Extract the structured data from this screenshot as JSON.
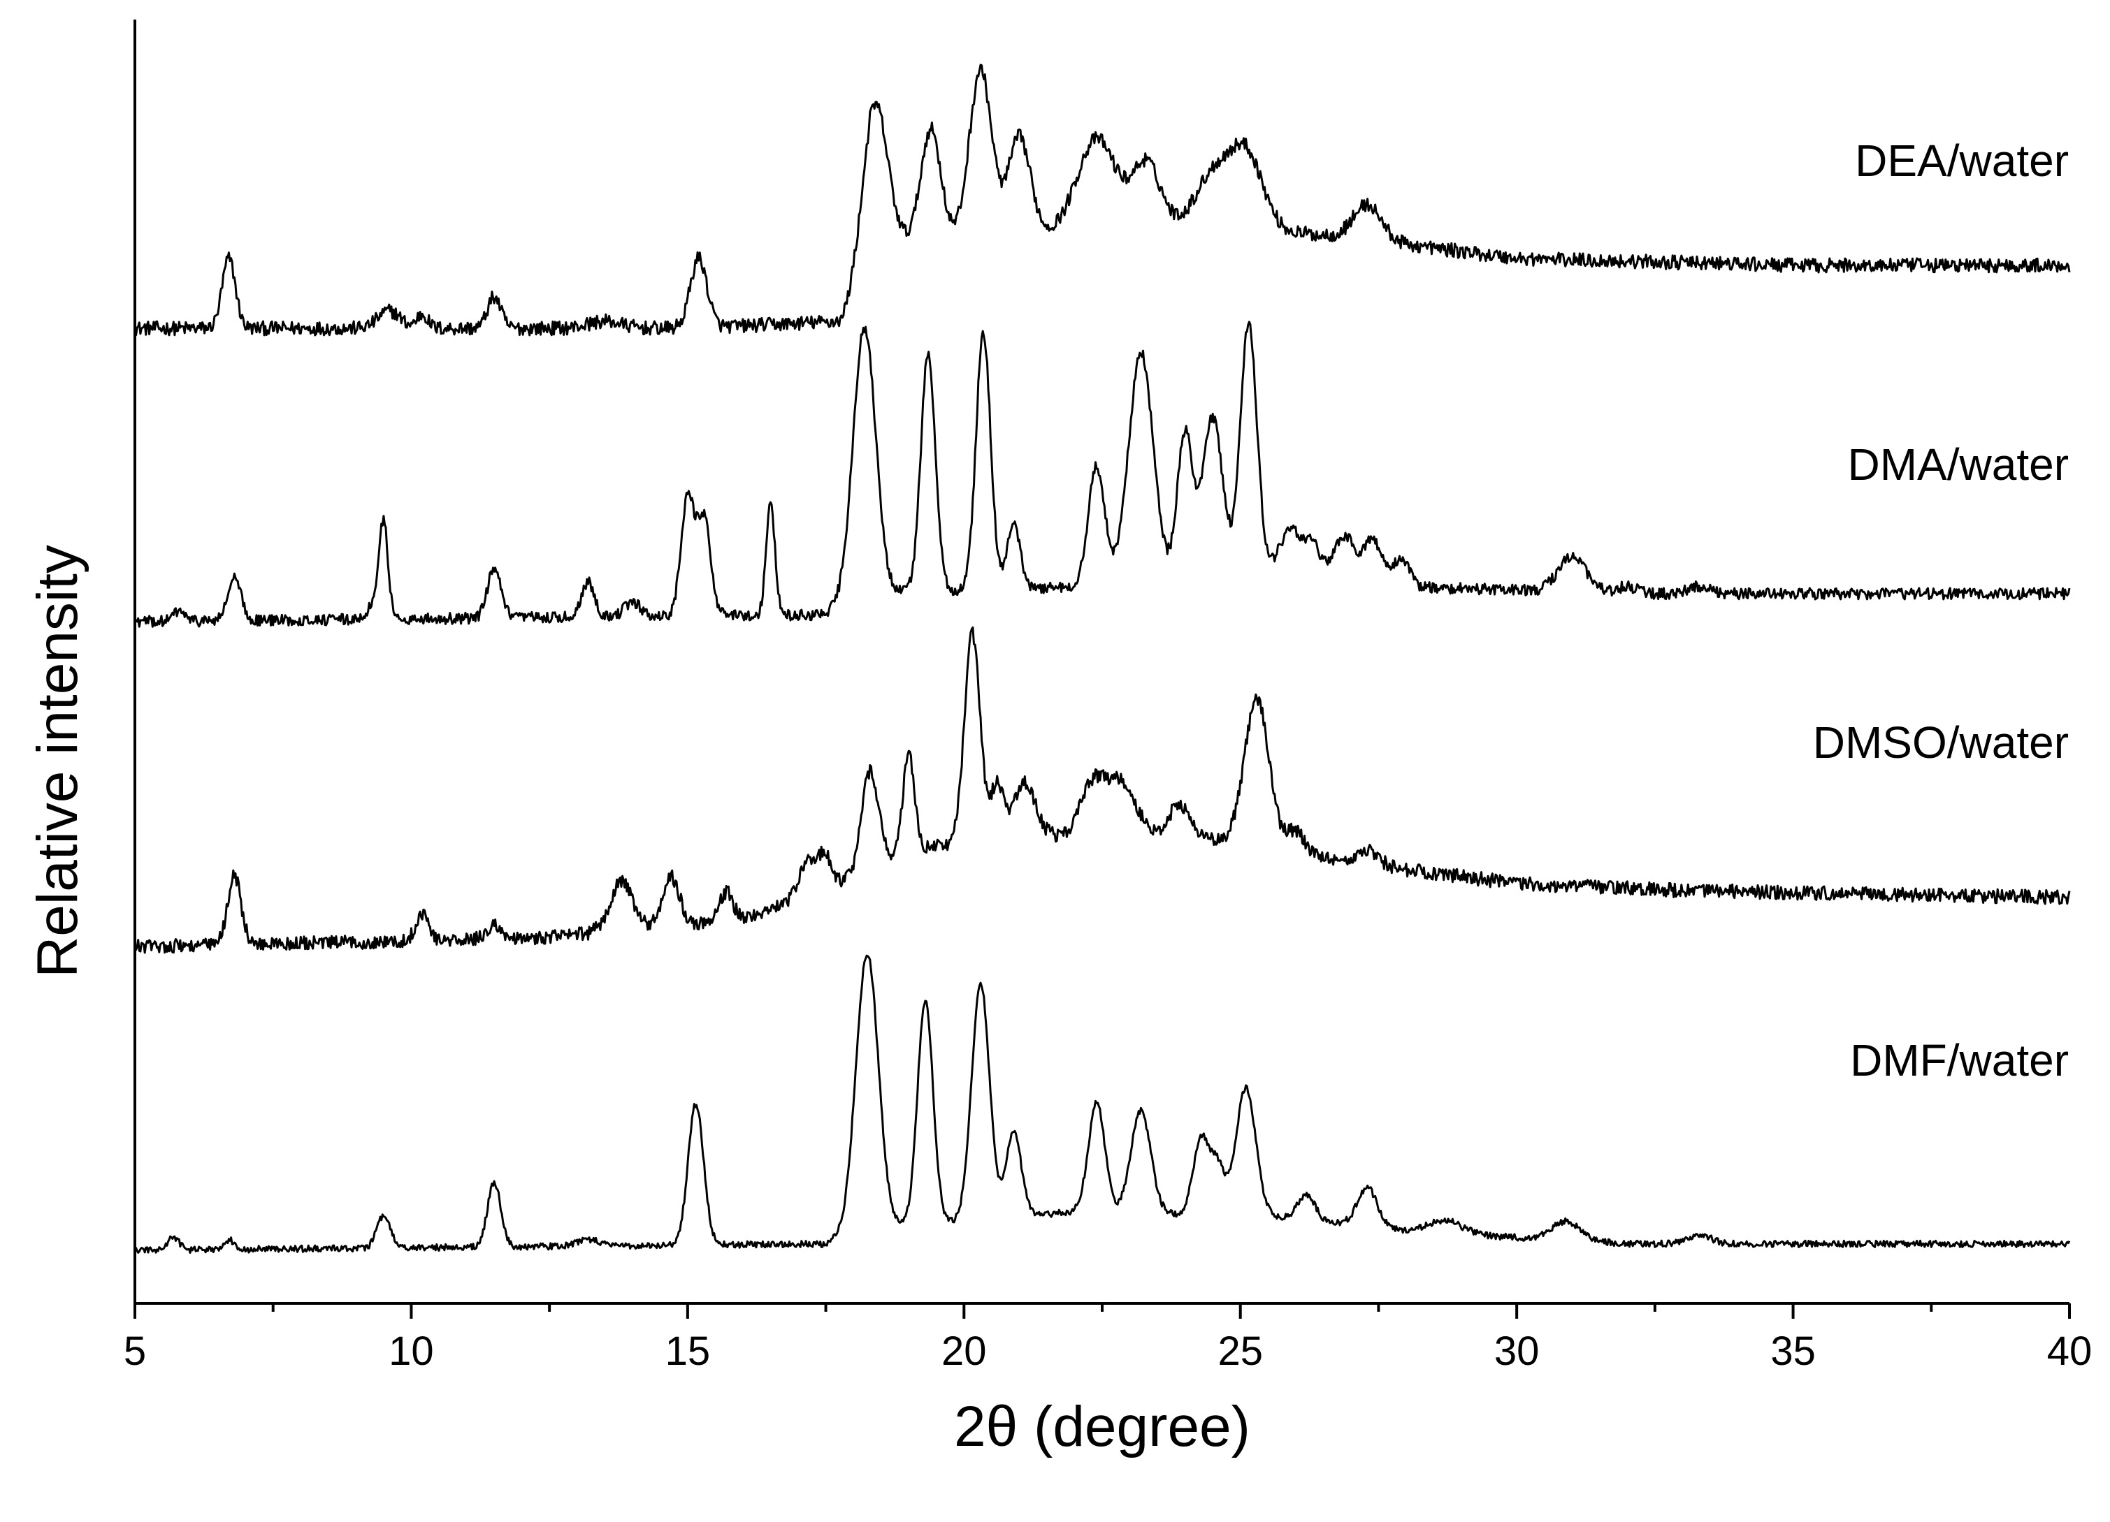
{
  "chart_data": {
    "type": "line",
    "xlabel": "2θ (degree)",
    "ylabel": "Relative intensity",
    "xlim": [
      5,
      40
    ],
    "x_ticks": [
      5,
      10,
      15,
      20,
      25,
      30,
      35,
      40
    ],
    "x_tick_labels": [
      "5",
      "10",
      "15",
      "20",
      "25",
      "30",
      "35",
      "40"
    ],
    "y_ticks_shown": false,
    "grid": false,
    "legend": "labels at right end of each trace",
    "series": [
      {
        "name": "DEA/water",
        "baseline": 0.0,
        "noise": 0.01,
        "background": [
          [
            5,
            0
          ],
          [
            15,
            0
          ],
          [
            17.8,
            0.01
          ],
          [
            18.3,
            0.12
          ],
          [
            24,
            0.15
          ],
          [
            27,
            0.13
          ],
          [
            30,
            0.1
          ],
          [
            35,
            0.09
          ],
          [
            40,
            0.09
          ]
        ],
        "peaks": [
          [
            6.7,
            0.1,
            0.12
          ],
          [
            9.6,
            0.025,
            0.2
          ],
          [
            10.2,
            0.02,
            0.1
          ],
          [
            11.5,
            0.045,
            0.12
          ],
          [
            13.5,
            0.01,
            0.3
          ],
          [
            15.2,
            0.1,
            0.15
          ],
          [
            18.4,
            0.2,
            0.22
          ],
          [
            19.4,
            0.16,
            0.18
          ],
          [
            20.3,
            0.24,
            0.2
          ],
          [
            21.0,
            0.14,
            0.2
          ],
          [
            22.4,
            0.13,
            0.35
          ],
          [
            23.3,
            0.09,
            0.25
          ],
          [
            24.5,
            0.07,
            0.3
          ],
          [
            25.1,
            0.11,
            0.3
          ],
          [
            27.3,
            0.05,
            0.25
          ]
        ]
      },
      {
        "name": "DMA/water",
        "baseline": 0.0,
        "noise": 0.008,
        "background": [
          [
            5,
            0
          ],
          [
            17.5,
            0.01
          ],
          [
            18,
            0.04
          ],
          [
            22,
            0.05
          ],
          [
            26,
            0.07
          ],
          [
            28,
            0.05
          ],
          [
            32,
            0.04
          ],
          [
            40,
            0.04
          ]
        ],
        "peaks": [
          [
            5.8,
            0.015,
            0.1
          ],
          [
            6.8,
            0.06,
            0.12
          ],
          [
            9.3,
            0.02,
            0.1
          ],
          [
            9.5,
            0.14,
            0.08
          ],
          [
            11.5,
            0.07,
            0.12
          ],
          [
            13.2,
            0.05,
            0.12
          ],
          [
            14.0,
            0.02,
            0.15
          ],
          [
            15.0,
            0.17,
            0.12
          ],
          [
            15.3,
            0.14,
            0.12
          ],
          [
            16.5,
            0.16,
            0.08
          ],
          [
            18.2,
            0.38,
            0.2
          ],
          [
            19.35,
            0.34,
            0.13
          ],
          [
            20.35,
            0.37,
            0.13
          ],
          [
            20.9,
            0.09,
            0.12
          ],
          [
            22.4,
            0.17,
            0.15
          ],
          [
            23.2,
            0.33,
            0.22
          ],
          [
            24.0,
            0.21,
            0.14
          ],
          [
            24.5,
            0.23,
            0.18
          ],
          [
            25.15,
            0.36,
            0.15
          ],
          [
            25.9,
            0.06,
            0.2
          ],
          [
            26.3,
            0.04,
            0.15
          ],
          [
            26.9,
            0.06,
            0.2
          ],
          [
            27.4,
            0.06,
            0.15
          ],
          [
            27.9,
            0.04,
            0.15
          ],
          [
            31.0,
            0.05,
            0.25
          ],
          [
            32.0,
            0.01,
            0.2
          ],
          [
            33.3,
            0.01,
            0.2
          ]
        ]
      },
      {
        "name": "DMSO/water",
        "baseline": 0.0,
        "noise": 0.01,
        "background": [
          [
            5,
            0
          ],
          [
            12,
            0.01
          ],
          [
            16,
            0.04
          ],
          [
            17.5,
            0.08
          ],
          [
            19,
            0.14
          ],
          [
            22,
            0.16
          ],
          [
            25,
            0.15
          ],
          [
            27,
            0.12
          ],
          [
            30,
            0.09
          ],
          [
            33,
            0.08
          ],
          [
            40,
            0.07
          ]
        ],
        "peaks": [
          [
            6.8,
            0.1,
            0.12
          ],
          [
            10.2,
            0.04,
            0.12
          ],
          [
            11.5,
            0.02,
            0.15
          ],
          [
            13.8,
            0.07,
            0.2
          ],
          [
            14.7,
            0.07,
            0.15
          ],
          [
            15.7,
            0.04,
            0.12
          ],
          [
            17.2,
            0.05,
            0.18
          ],
          [
            17.5,
            0.04,
            0.12
          ],
          [
            18.3,
            0.14,
            0.15
          ],
          [
            19.0,
            0.14,
            0.1
          ],
          [
            20.15,
            0.3,
            0.14
          ],
          [
            20.6,
            0.08,
            0.12
          ],
          [
            21.1,
            0.08,
            0.2
          ],
          [
            22.3,
            0.06,
            0.2
          ],
          [
            22.8,
            0.08,
            0.3
          ],
          [
            23.9,
            0.05,
            0.2
          ],
          [
            25.3,
            0.21,
            0.22
          ],
          [
            26.0,
            0.03,
            0.15
          ],
          [
            27.3,
            0.02,
            0.2
          ]
        ]
      },
      {
        "name": "DMF/water",
        "baseline": 0.0,
        "noise": 0.005,
        "background": [
          [
            5,
            0
          ],
          [
            17.5,
            0.01
          ],
          [
            18,
            0.03
          ],
          [
            22,
            0.06
          ],
          [
            26,
            0.05
          ],
          [
            28,
            0.03
          ],
          [
            32,
            0.01
          ],
          [
            40,
            0.01
          ]
        ],
        "peaks": [
          [
            5.7,
            0.02,
            0.1
          ],
          [
            6.7,
            0.015,
            0.1
          ],
          [
            9.5,
            0.05,
            0.12
          ],
          [
            11.5,
            0.1,
            0.12
          ],
          [
            13.2,
            0.01,
            0.2
          ],
          [
            15.15,
            0.22,
            0.14
          ],
          [
            18.25,
            0.43,
            0.2
          ],
          [
            19.3,
            0.35,
            0.14
          ],
          [
            20.3,
            0.37,
            0.16
          ],
          [
            20.9,
            0.13,
            0.14
          ],
          [
            22.4,
            0.17,
            0.15
          ],
          [
            23.2,
            0.16,
            0.18
          ],
          [
            24.3,
            0.12,
            0.15
          ],
          [
            24.6,
            0.07,
            0.12
          ],
          [
            25.1,
            0.2,
            0.18
          ],
          [
            26.2,
            0.04,
            0.15
          ],
          [
            27.3,
            0.06,
            0.18
          ],
          [
            28.7,
            0.02,
            0.3
          ],
          [
            30.9,
            0.03,
            0.25
          ],
          [
            33.3,
            0.015,
            0.2
          ]
        ]
      }
    ]
  }
}
